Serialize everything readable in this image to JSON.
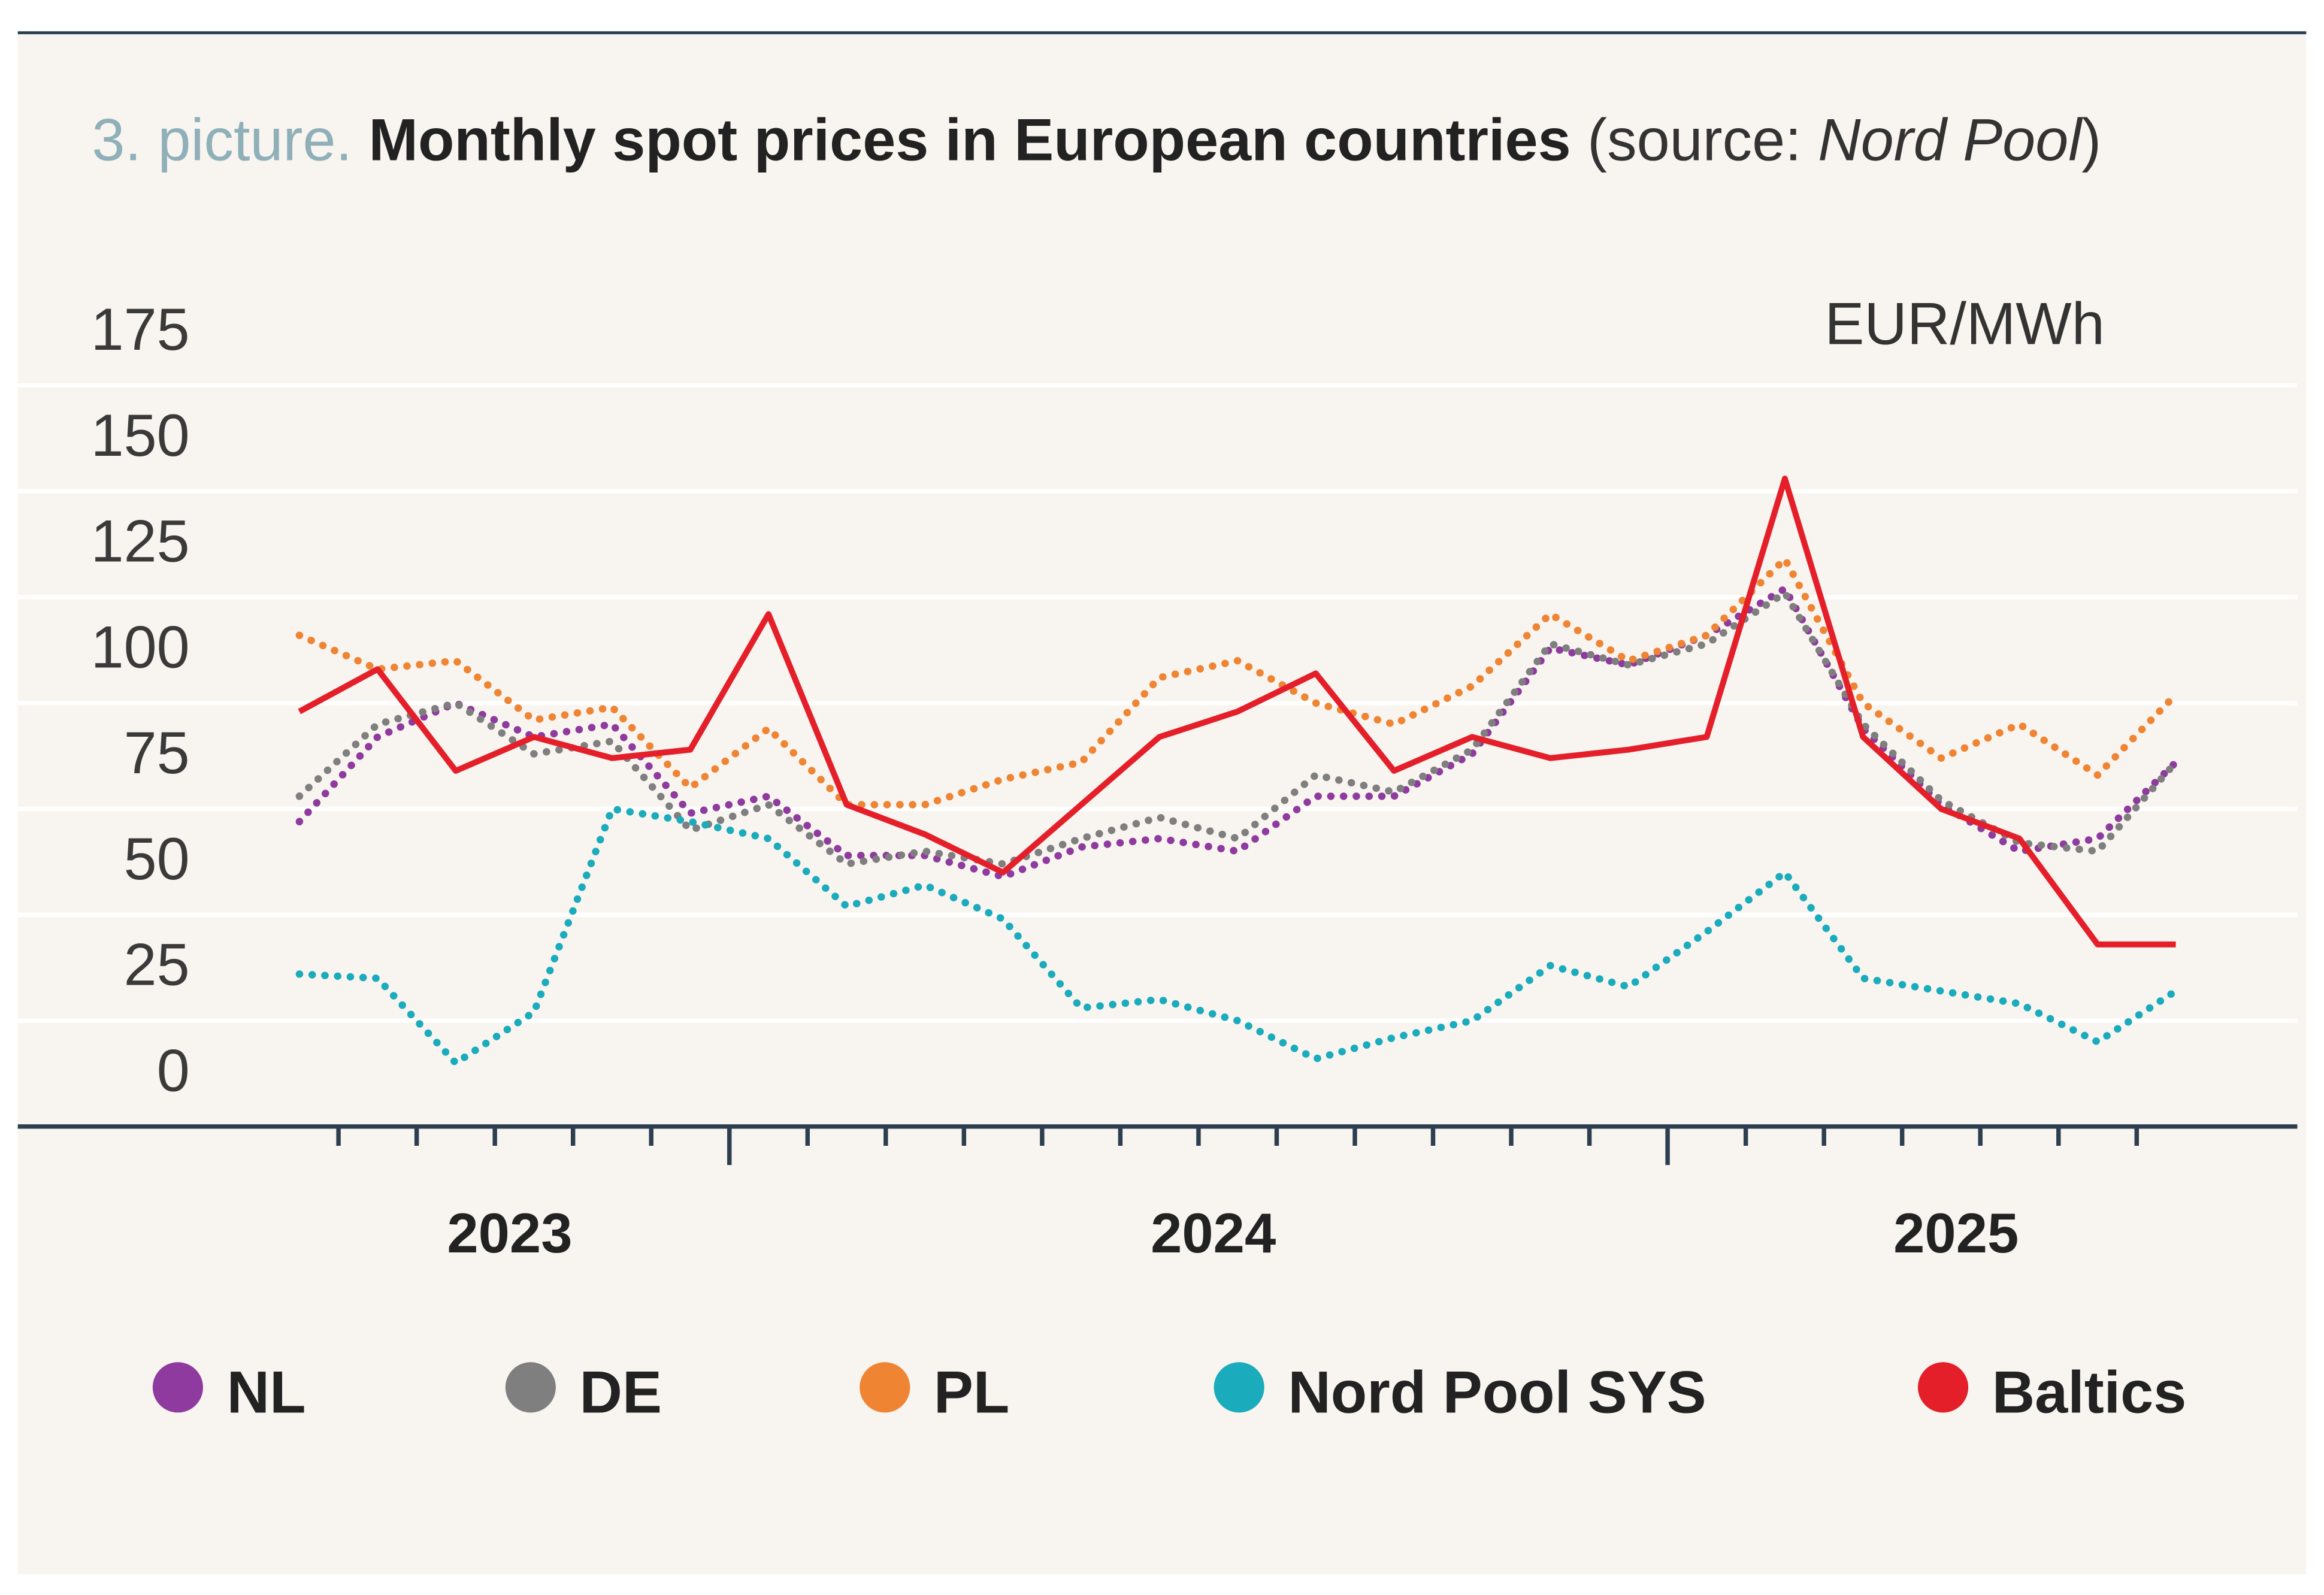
{
  "chart_data": {
    "type": "line",
    "title_prefix": "3. picture.",
    "title": "Monthly spot prices in European countries",
    "source_open": "(source: ",
    "source": "Nord Pool",
    "source_close": ")",
    "y_label": "EUR/MWh",
    "categories": [
      null,
      null,
      null,
      null,
      null,
      null,
      null,
      null,
      null,
      null,
      null,
      null,
      null,
      null,
      null,
      null,
      null,
      null,
      null,
      null,
      null,
      null,
      null,
      null,
      null
    ],
    "x_groups": [
      {
        "label": "2023",
        "count": 6
      },
      {
        "label": "2024",
        "count": 12
      },
      {
        "label": "2025",
        "count": 7
      }
    ],
    "ylim": [
      0,
      175
    ],
    "yticks": [
      0,
      25,
      50,
      75,
      100,
      125,
      150,
      175
    ],
    "grid": true,
    "legend": "bottom",
    "series": [
      {
        "name": "NL",
        "color": "#8e3a9e",
        "style": "dotted",
        "values": [
          72,
          92,
          100,
          92,
          95,
          74,
          78,
          64,
          64,
          59,
          66,
          68,
          65,
          78,
          78,
          88,
          113,
          109,
          116,
          127,
          94,
          76,
          65,
          68,
          86
        ]
      },
      {
        "name": "DE",
        "color": "#7f7f7f",
        "style": "dotted",
        "values": [
          78,
          95,
          100,
          88,
          91,
          70,
          76,
          62,
          65,
          62,
          68,
          73,
          68,
          83,
          79,
          89,
          114,
          109,
          114,
          126,
          95,
          77,
          67,
          65,
          86
        ]
      },
      {
        "name": "PL",
        "color": "#ef8433",
        "style": "dotted",
        "values": [
          116,
          108,
          110,
          96,
          99,
          80,
          94,
          76,
          76,
          82,
          86,
          106,
          110,
          100,
          95,
          104,
          121,
          110,
          116,
          134,
          100,
          87,
          95,
          83,
          102
        ]
      },
      {
        "name": "Nord Pool SYS",
        "color": "#1aabbc",
        "style": "dotted",
        "values": [
          36,
          35,
          15,
          27,
          75,
          72,
          68,
          52,
          57,
          49,
          28,
          30,
          25,
          16,
          21,
          25,
          38,
          33,
          46,
          60,
          35,
          32,
          29,
          20,
          32
        ]
      },
      {
        "name": "Baltics",
        "color": "#e41f2a",
        "style": "solid",
        "values": [
          98,
          108,
          84,
          92,
          87,
          89,
          121,
          76,
          69,
          60,
          76,
          92,
          98,
          107,
          84,
          92,
          87,
          89,
          92,
          153,
          92,
          75,
          68,
          43,
          43
        ]
      }
    ]
  }
}
